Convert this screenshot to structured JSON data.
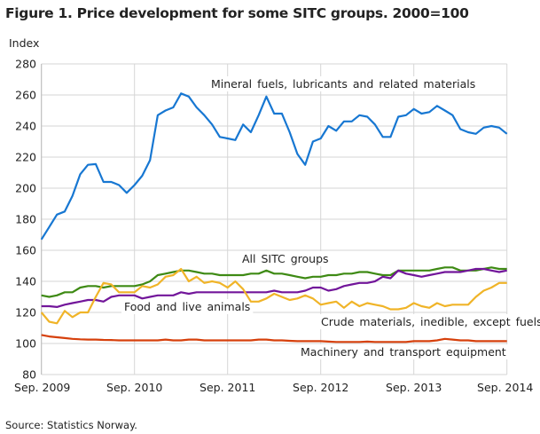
{
  "title": "Figure 1. Price development for some SITC groups. 2000=100",
  "source": "Source: Statistics Norway.",
  "chart_data": {
    "type": "line",
    "title": "Figure 1. Price development for some SITC groups. 2000=100",
    "ylabel": "Index",
    "xlabel": "",
    "x_start": "2009-09",
    "x_end": "2014-09",
    "x_frequency": "monthly",
    "xticks": [
      "Sep. 2009",
      "Sep. 2010",
      "Sep. 2011",
      "Sep. 2012",
      "Sep. 2013",
      "Sep. 2014"
    ],
    "yticks": [
      80,
      100,
      120,
      140,
      160,
      180,
      200,
      220,
      240,
      260,
      280
    ],
    "ylim": [
      80,
      280
    ],
    "grid": true,
    "legend": "inline labels",
    "series": [
      {
        "name": "Mineral fuels, lubricants and related materials",
        "color": "#1777d2",
        "values": [
          167,
          175,
          183,
          185,
          195,
          209,
          215,
          215.5,
          204,
          204,
          202,
          197,
          202,
          208,
          218,
          247,
          250,
          252,
          261,
          259,
          252,
          247,
          241,
          233,
          232,
          231,
          241,
          236,
          247,
          259,
          248,
          248,
          236,
          222,
          215,
          230,
          232,
          240,
          237,
          243,
          243,
          247,
          246,
          241,
          233,
          233,
          246,
          247,
          251,
          248,
          249,
          253,
          250,
          247,
          238,
          236,
          235,
          239,
          240,
          239,
          235
        ]
      },
      {
        "name": "All SITC groups",
        "color": "#3e8a14",
        "values": [
          131,
          130,
          131,
          133,
          133,
          136,
          137,
          137,
          136,
          137,
          137,
          137,
          137,
          138,
          140,
          144,
          145,
          146,
          147,
          147,
          146,
          145,
          145,
          144,
          144,
          144,
          144,
          145,
          145,
          147,
          145,
          145,
          144,
          143,
          142,
          143,
          143,
          144,
          144,
          145,
          145,
          146,
          146,
          145,
          144,
          144,
          147,
          147,
          147,
          147,
          147,
          148,
          149,
          149,
          147,
          147,
          147,
          148,
          149,
          148,
          148
        ]
      },
      {
        "name": "Food and live animals",
        "color": "#72169a",
        "values": [
          124,
          124,
          123.5,
          125,
          126,
          127,
          128,
          128,
          127,
          130,
          131,
          131,
          131,
          129,
          130,
          131,
          131,
          131,
          133,
          132,
          133,
          133,
          133,
          133,
          133,
          133,
          133,
          133,
          133,
          133,
          134,
          133,
          133,
          133,
          134,
          136,
          136,
          134,
          135,
          137,
          138,
          139,
          139,
          140,
          143,
          142,
          147,
          145,
          144,
          143,
          144,
          145,
          146,
          146,
          146,
          147,
          148,
          148,
          147,
          146,
          147
        ]
      },
      {
        "name": "Crude materials, inedible, except fuels",
        "color": "#f0b428",
        "values": [
          120,
          114,
          113,
          121,
          117,
          120,
          120,
          130,
          139,
          138,
          133,
          133,
          133,
          137,
          136,
          138,
          143,
          144,
          148,
          140,
          143,
          139,
          140,
          139,
          136,
          140,
          135,
          127,
          127,
          129,
          132,
          130,
          128,
          129,
          131,
          129,
          125,
          126,
          127,
          123,
          127,
          124,
          126,
          125,
          124,
          122,
          122,
          123,
          126,
          124,
          123,
          126,
          124,
          125,
          125,
          125,
          130,
          134,
          136,
          139,
          139
        ]
      },
      {
        "name": "Machinery and transport equipment",
        "color": "#d6400c",
        "values": [
          105.5,
          104.5,
          104,
          103.5,
          103,
          102.7,
          102.5,
          102.5,
          102.3,
          102.2,
          102,
          102,
          102,
          102,
          102,
          102,
          102.5,
          102,
          102,
          102.5,
          102.5,
          102,
          102,
          102,
          102,
          102,
          102,
          102,
          102.5,
          102.5,
          102,
          102,
          101.7,
          101.5,
          101.5,
          101.5,
          101.5,
          101.2,
          101,
          101,
          101,
          101,
          101.2,
          101,
          101,
          101,
          101,
          101,
          101.5,
          101.5,
          101.5,
          102,
          103,
          102.5,
          102,
          102,
          101.5,
          101.5,
          101.5,
          101.5,
          101.5
        ]
      }
    ]
  }
}
